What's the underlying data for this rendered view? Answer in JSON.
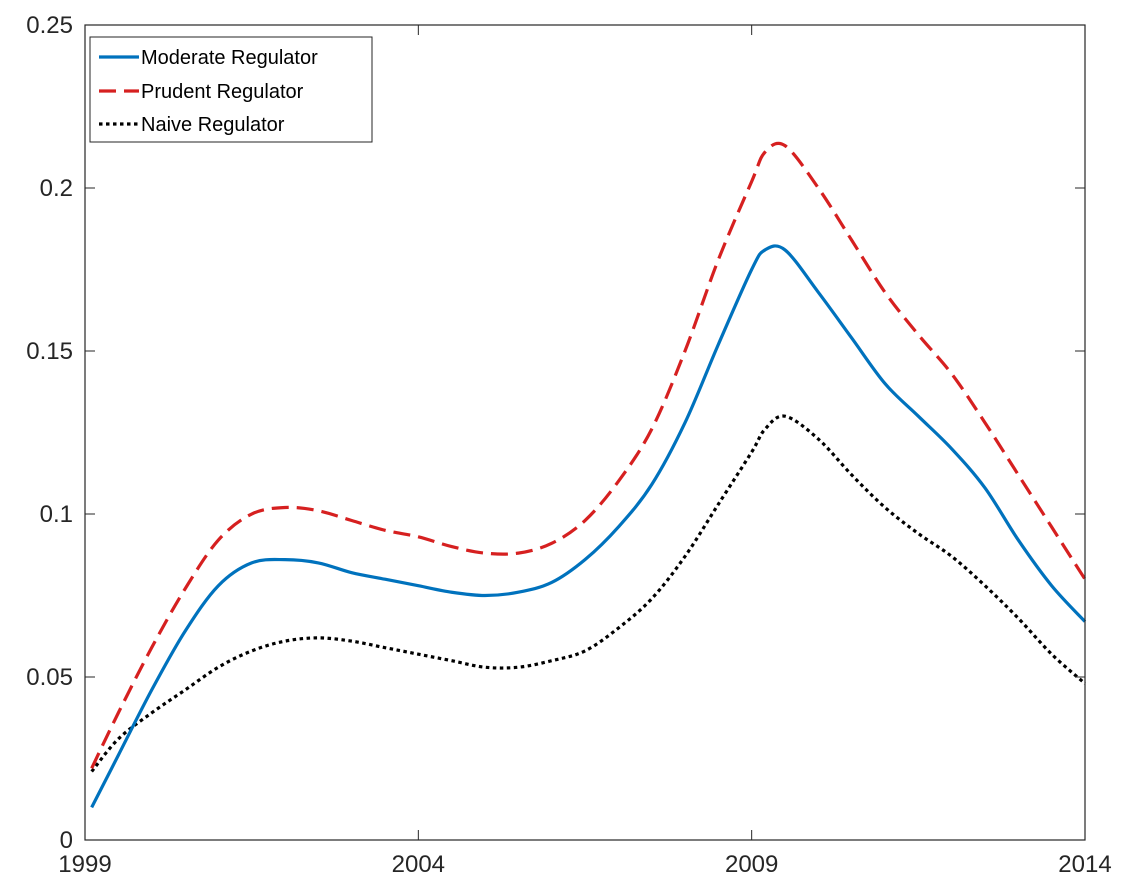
{
  "chart_data": {
    "type": "line",
    "title": "",
    "xlabel": "",
    "ylabel": "",
    "xlim": [
      1999,
      2014
    ],
    "ylim": [
      0,
      0.25
    ],
    "x_ticks": [
      1999,
      2004,
      2009,
      2014
    ],
    "x_tick_labels": [
      "1999",
      "2004",
      "2009",
      "2014"
    ],
    "y_ticks": [
      0,
      0.05,
      0.1,
      0.15,
      0.2,
      0.25
    ],
    "y_tick_labels": [
      "0",
      "0.05",
      "0.1",
      "0.15",
      "0.2",
      "0.25"
    ],
    "grid": false,
    "legend_position": "top-left",
    "x": [
      1999.1,
      1999.5,
      2000.0,
      2000.5,
      2001.0,
      2001.5,
      2002.0,
      2002.5,
      2003.0,
      2003.5,
      2004.0,
      2004.5,
      2005.0,
      2005.5,
      2006.0,
      2006.5,
      2007.0,
      2007.5,
      2008.0,
      2008.5,
      2009.0,
      2009.2,
      2009.5,
      2010.0,
      2010.5,
      2011.0,
      2011.5,
      2012.0,
      2012.5,
      2013.0,
      2013.5,
      2014.0
    ],
    "series": [
      {
        "name": "Moderate Regulator",
        "color": "#0072bd",
        "dash": "solid",
        "values": [
          0.01,
          0.026,
          0.046,
          0.064,
          0.078,
          0.085,
          0.086,
          0.085,
          0.082,
          0.08,
          0.078,
          0.076,
          0.075,
          0.076,
          0.079,
          0.086,
          0.096,
          0.109,
          0.128,
          0.152,
          0.175,
          0.181,
          0.181,
          0.168,
          0.154,
          0.14,
          0.13,
          0.12,
          0.108,
          0.092,
          0.078,
          0.067
        ]
      },
      {
        "name": "Prudent Regulator",
        "color": "#d62020",
        "dash": "dashed",
        "values": [
          0.022,
          0.039,
          0.059,
          0.077,
          0.092,
          0.1,
          0.102,
          0.101,
          0.098,
          0.095,
          0.093,
          0.09,
          0.088,
          0.088,
          0.091,
          0.098,
          0.11,
          0.126,
          0.15,
          0.178,
          0.202,
          0.211,
          0.213,
          0.2,
          0.184,
          0.168,
          0.155,
          0.143,
          0.128,
          0.112,
          0.096,
          0.08
        ]
      },
      {
        "name": "Naive Regulator",
        "color": "#000000",
        "dash": "dotted",
        "values": [
          0.021,
          0.031,
          0.039,
          0.046,
          0.053,
          0.058,
          0.061,
          0.062,
          0.061,
          0.059,
          0.057,
          0.055,
          0.053,
          0.053,
          0.055,
          0.058,
          0.065,
          0.074,
          0.087,
          0.103,
          0.119,
          0.126,
          0.13,
          0.123,
          0.112,
          0.102,
          0.094,
          0.087,
          0.078,
          0.068,
          0.057,
          0.048
        ]
      }
    ]
  }
}
